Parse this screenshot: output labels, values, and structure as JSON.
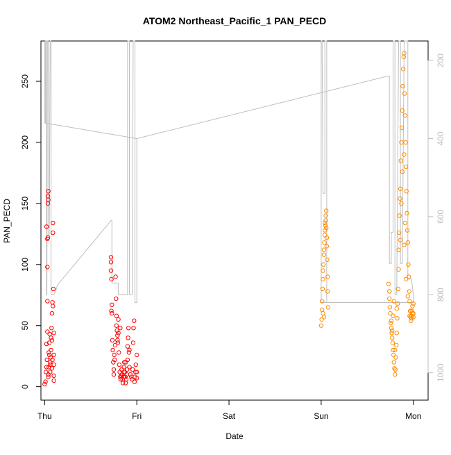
{
  "chart_data": {
    "type": "scatter",
    "title": "ATOM2 Northeast_Pacific_1 PAN_PECD",
    "xlabel": "Date",
    "ylabel": "PAN_PECD",
    "x_unit": "days since Thu 00:00",
    "xlim": [
      -0.04,
      4.16
    ],
    "ylim": [
      -11,
      283
    ],
    "x_ticks": [
      {
        "value": 0,
        "label": "Thu"
      },
      {
        "value": 1,
        "label": "Fri"
      },
      {
        "value": 2,
        "label": "Sat"
      },
      {
        "value": 3,
        "label": "Sun"
      },
      {
        "value": 4,
        "label": "Mon"
      }
    ],
    "y_ticks": [
      0,
      50,
      100,
      150,
      200,
      250
    ],
    "y2_ticks": [
      200,
      400,
      600,
      800,
      1000
    ],
    "y2_range": [
      1070,
      150
    ],
    "y2_reversed": true,
    "grid": false,
    "colors": {
      "series_red": "#ff0000",
      "series_orange": "#ff8c00",
      "pressure_line": "#bebebe"
    },
    "series": [
      {
        "color": "#ff0000",
        "points": [
          [
            0.0,
            2
          ],
          [
            0.01,
            4
          ],
          [
            0.015,
            12
          ],
          [
            0.02,
            35
          ],
          [
            0.025,
            22
          ],
          [
            0.03,
            45
          ],
          [
            0.03,
            70
          ],
          [
            0.03,
            98
          ],
          [
            0.02,
            131
          ],
          [
            0.03,
            121
          ],
          [
            0.035,
            150
          ],
          [
            0.035,
            156
          ],
          [
            0.04,
            160
          ],
          [
            0.04,
            153
          ],
          [
            0.035,
            122
          ],
          [
            0.04,
            10
          ],
          [
            0.045,
            16
          ],
          [
            0.045,
            28
          ],
          [
            0.05,
            36
          ],
          [
            0.05,
            26
          ],
          [
            0.055,
            43
          ],
          [
            0.06,
            18
          ],
          [
            0.06,
            20
          ],
          [
            0.065,
            24
          ],
          [
            0.07,
            30
          ],
          [
            0.075,
            48
          ],
          [
            0.08,
            15
          ],
          [
            0.08,
            38
          ],
          [
            0.085,
            22
          ],
          [
            0.085,
            69
          ],
          [
            0.09,
            66
          ],
          [
            0.09,
            126
          ],
          [
            0.09,
            134
          ],
          [
            0.095,
            80
          ],
          [
            0.1,
            5
          ],
          [
            0.1,
            9
          ],
          [
            0.1,
            18
          ],
          [
            0.1,
            26
          ],
          [
            0.1,
            44
          ],
          [
            0.08,
            60
          ],
          [
            0.06,
            12
          ],
          [
            0.02,
            16
          ],
          [
            0.04,
            8
          ],
          [
            0.07,
            40
          ],
          [
            0.72,
            102
          ],
          [
            0.72,
            106
          ],
          [
            0.72,
            95
          ],
          [
            0.725,
            88
          ],
          [
            0.725,
            62
          ],
          [
            0.73,
            60
          ],
          [
            0.73,
            67
          ],
          [
            0.735,
            38
          ],
          [
            0.74,
            30
          ],
          [
            0.745,
            20
          ],
          [
            0.75,
            10
          ],
          [
            0.75,
            14
          ],
          [
            0.755,
            26
          ],
          [
            0.76,
            22
          ],
          [
            0.765,
            34
          ],
          [
            0.77,
            90
          ],
          [
            0.775,
            72
          ],
          [
            0.78,
            50
          ],
          [
            0.785,
            46
          ],
          [
            0.79,
            42
          ],
          [
            0.79,
            38
          ],
          [
            0.795,
            36
          ],
          [
            0.8,
            44
          ],
          [
            0.8,
            55
          ],
          [
            0.805,
            28
          ],
          [
            0.81,
            18
          ],
          [
            0.815,
            12
          ],
          [
            0.82,
            8
          ],
          [
            0.825,
            6
          ],
          [
            0.83,
            9
          ],
          [
            0.835,
            14
          ],
          [
            0.84,
            10
          ],
          [
            0.845,
            6
          ],
          [
            0.85,
            3
          ],
          [
            0.855,
            8
          ],
          [
            0.86,
            12
          ],
          [
            0.86,
            16
          ],
          [
            0.865,
            20
          ],
          [
            0.87,
            12
          ],
          [
            0.875,
            8
          ],
          [
            0.88,
            3
          ],
          [
            0.885,
            6
          ],
          [
            0.89,
            10
          ],
          [
            0.895,
            14
          ],
          [
            0.9,
            22
          ],
          [
            0.9,
            33
          ],
          [
            0.905,
            40
          ],
          [
            0.91,
            48
          ],
          [
            0.915,
            28
          ],
          [
            0.92,
            16
          ],
          [
            0.93,
            10
          ],
          [
            0.94,
            8
          ],
          [
            0.95,
            6
          ],
          [
            0.955,
            14
          ],
          [
            0.96,
            36
          ],
          [
            0.965,
            48
          ],
          [
            0.97,
            54
          ],
          [
            0.975,
            4
          ],
          [
            0.98,
            8
          ],
          [
            0.985,
            12
          ],
          [
            0.99,
            18
          ],
          [
            1.0,
            26
          ],
          [
            1.0,
            12
          ],
          [
            1.0,
            7
          ],
          [
            0.78,
            58
          ],
          [
            0.82,
            48
          ],
          [
            0.88,
            20
          ],
          [
            0.92,
            30
          ]
        ]
      },
      {
        "color": "#ff8c00",
        "points": [
          [
            3.0,
            50
          ],
          [
            3.005,
            55
          ],
          [
            3.01,
            63
          ],
          [
            3.01,
            70
          ],
          [
            3.015,
            80
          ],
          [
            3.02,
            88
          ],
          [
            3.02,
            95
          ],
          [
            3.025,
            100
          ],
          [
            3.03,
            108
          ],
          [
            3.03,
            112
          ],
          [
            3.035,
            118
          ],
          [
            3.04,
            124
          ],
          [
            3.04,
            128
          ],
          [
            3.045,
            132
          ],
          [
            3.05,
            136
          ],
          [
            3.05,
            140
          ],
          [
            3.055,
            144
          ],
          [
            3.06,
            122
          ],
          [
            3.06,
            115
          ],
          [
            3.065,
            104
          ],
          [
            3.07,
            90
          ],
          [
            3.07,
            78
          ],
          [
            3.075,
            65
          ],
          [
            3.02,
            60
          ],
          [
            3.03,
            57
          ],
          [
            3.04,
            134
          ],
          [
            3.055,
            130
          ],
          [
            3.73,
            84
          ],
          [
            3.74,
            78
          ],
          [
            3.74,
            72
          ],
          [
            3.745,
            65
          ],
          [
            3.75,
            60
          ],
          [
            3.755,
            52
          ],
          [
            3.76,
            48
          ],
          [
            3.765,
            44
          ],
          [
            3.77,
            40
          ],
          [
            3.775,
            36
          ],
          [
            3.78,
            30
          ],
          [
            3.785,
            26
          ],
          [
            3.79,
            20
          ],
          [
            3.795,
            15
          ],
          [
            3.8,
            10
          ],
          [
            3.805,
            14
          ],
          [
            3.81,
            24
          ],
          [
            3.815,
            34
          ],
          [
            3.82,
            44
          ],
          [
            3.825,
            56
          ],
          [
            3.83,
            68
          ],
          [
            3.835,
            80
          ],
          [
            3.84,
            96
          ],
          [
            3.84,
            112
          ],
          [
            3.845,
            126
          ],
          [
            3.85,
            140
          ],
          [
            3.855,
            154
          ],
          [
            3.86,
            162
          ],
          [
            3.865,
            185
          ],
          [
            3.87,
            200
          ],
          [
            3.875,
            212
          ],
          [
            3.88,
            226
          ],
          [
            3.885,
            246
          ],
          [
            3.89,
            260
          ],
          [
            3.895,
            270
          ],
          [
            3.9,
            273
          ],
          [
            3.905,
            240
          ],
          [
            3.91,
            222
          ],
          [
            3.915,
            200
          ],
          [
            3.92,
            180
          ],
          [
            3.925,
            160
          ],
          [
            3.93,
            142
          ],
          [
            3.935,
            128
          ],
          [
            3.94,
            118
          ],
          [
            3.945,
            100
          ],
          [
            3.95,
            90
          ],
          [
            3.955,
            78
          ],
          [
            3.96,
            70
          ],
          [
            3.965,
            62
          ],
          [
            3.97,
            57
          ],
          [
            3.975,
            54
          ],
          [
            3.98,
            58
          ],
          [
            3.985,
            62
          ],
          [
            3.99,
            66
          ],
          [
            4.0,
            60
          ],
          [
            4.0,
            68
          ],
          [
            4.0,
            57
          ],
          [
            3.76,
            54
          ],
          [
            3.77,
            46
          ],
          [
            3.78,
            58
          ],
          [
            3.79,
            70
          ],
          [
            3.8,
            30
          ],
          [
            3.82,
            64
          ],
          [
            3.86,
            120
          ],
          [
            3.87,
            150
          ],
          [
            3.88,
            176
          ],
          [
            3.9,
            190
          ],
          [
            3.9,
            116
          ],
          [
            3.91,
            134
          ],
          [
            3.92,
            88
          ],
          [
            3.94,
            74
          ],
          [
            3.96,
            58
          ],
          [
            3.97,
            62
          ],
          [
            3.98,
            56
          ],
          [
            3.99,
            60
          ]
        ]
      }
    ],
    "pressure_line": [
      [
        0.0,
        150
      ],
      [
        0.0,
        360
      ],
      [
        0.01,
        360
      ],
      [
        0.01,
        150
      ],
      [
        0.02,
        150
      ],
      [
        0.02,
        800
      ],
      [
        0.025,
        800
      ],
      [
        0.03,
        150
      ],
      [
        0.04,
        150
      ],
      [
        0.045,
        650
      ],
      [
        0.05,
        650
      ],
      [
        0.06,
        150
      ],
      [
        0.07,
        150
      ],
      [
        0.07,
        800
      ],
      [
        0.1,
        800
      ],
      [
        0.12,
        790
      ],
      [
        0.14,
        775
      ],
      [
        0.14,
        775
      ],
      [
        0.72,
        610
      ],
      [
        0.73,
        610
      ],
      [
        0.73,
        770
      ],
      [
        0.8,
        770
      ],
      [
        0.8,
        800
      ],
      [
        0.88,
        800
      ],
      [
        0.9,
        800
      ],
      [
        0.9,
        150
      ],
      [
        0.92,
        150
      ],
      [
        0.92,
        800
      ],
      [
        0.95,
        800
      ],
      [
        0.96,
        150
      ],
      [
        0.98,
        150
      ],
      [
        0.98,
        820
      ],
      [
        1.0,
        820
      ],
      [
        1.0,
        400
      ],
      [
        1.0,
        400
      ],
      [
        0.0,
        360
      ],
      [
        1.0,
        400
      ],
      [
        3.72,
        240
      ],
      [
        3.74,
        240
      ],
      [
        3.74,
        720
      ],
      [
        3.76,
        720
      ],
      [
        3.76,
        640
      ],
      [
        3.78,
        640
      ],
      [
        3.78,
        150
      ],
      [
        3.8,
        150
      ],
      [
        3.8,
        800
      ],
      [
        3.82,
        800
      ],
      [
        3.84,
        150
      ],
      [
        3.86,
        150
      ],
      [
        3.86,
        720
      ],
      [
        3.88,
        720
      ],
      [
        3.9,
        150
      ],
      [
        3.94,
        150
      ],
      [
        3.94,
        760
      ],
      [
        3.98,
        760
      ],
      [
        4.0,
        800
      ],
      [
        4.0,
        820
      ],
      [
        4.0,
        820
      ],
      [
        3.0,
        820
      ],
      [
        3.0,
        150
      ],
      [
        3.01,
        150
      ],
      [
        3.02,
        540
      ],
      [
        3.04,
        540
      ],
      [
        3.04,
        150
      ],
      [
        3.06,
        150
      ],
      [
        3.06,
        820
      ]
    ]
  }
}
